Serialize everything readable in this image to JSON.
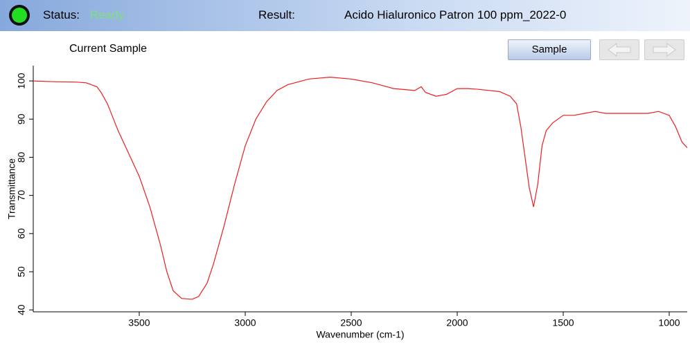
{
  "status_bar": {
    "status_label": "Status:",
    "status_value": "Ready",
    "result_label": "Result:",
    "result_value": "Acido Hialuronico Patron 100 ppm_2022-0"
  },
  "toolbar": {
    "sample_label": "Current Sample",
    "sample_button": "Sample"
  },
  "chart_data": {
    "type": "line",
    "xlabel": "Wavenumber (cm-1)",
    "ylabel": "Transmittance",
    "color": "#ee1c1c",
    "xlim": [
      4000,
      915
    ],
    "ylim": [
      39.5,
      104
    ],
    "xticks": [
      3500,
      3000,
      2500,
      2000,
      1500,
      1000
    ],
    "yticks": [
      40,
      50,
      60,
      70,
      80,
      90,
      100
    ],
    "x": [
      4000,
      3900,
      3800,
      3750,
      3700,
      3680,
      3650,
      3600,
      3550,
      3500,
      3450,
      3400,
      3370,
      3340,
      3300,
      3250,
      3220,
      3180,
      3150,
      3100,
      3050,
      3000,
      2950,
      2900,
      2850,
      2800,
      2700,
      2600,
      2500,
      2400,
      2300,
      2200,
      2170,
      2150,
      2100,
      2050,
      2000,
      1950,
      1900,
      1800,
      1750,
      1720,
      1700,
      1680,
      1660,
      1640,
      1620,
      1600,
      1580,
      1550,
      1500,
      1450,
      1400,
      1350,
      1300,
      1200,
      1100,
      1050,
      1000,
      970,
      940,
      915
    ],
    "values": [
      100,
      99.8,
      99.7,
      99.5,
      98.5,
      97,
      94,
      87,
      81,
      75,
      67,
      57,
      50,
      45,
      43,
      42.8,
      43.5,
      47,
      52,
      62,
      73,
      83,
      90,
      94.5,
      97.5,
      99,
      100.5,
      101,
      100.5,
      99.5,
      98,
      97.5,
      98.5,
      97,
      96,
      96.5,
      98,
      98,
      97.8,
      97.2,
      96,
      94,
      88,
      80,
      72,
      67,
      73,
      83,
      87,
      89,
      91,
      91,
      91.5,
      92,
      91.5,
      91.5,
      91.5,
      92,
      91,
      88,
      84,
      82.5
    ]
  }
}
